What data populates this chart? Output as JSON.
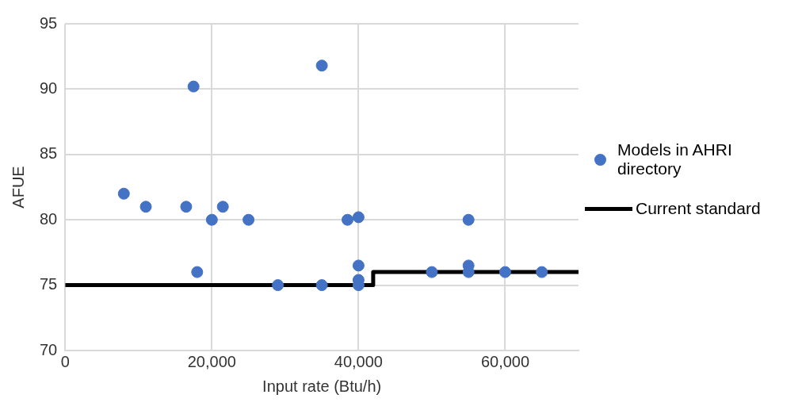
{
  "chart_data": {
    "type": "scatter",
    "xlabel": "Input rate (Btu/h)",
    "ylabel": "AFUE",
    "xlim": [
      0,
      70000
    ],
    "xticks": [
      0,
      {
        "value": 20000,
        "label": "20,000"
      },
      {
        "value": 40000,
        "label": "40,000"
      },
      {
        "value": 60000,
        "label": "60,000"
      }
    ],
    "ylim": [
      70,
      95
    ],
    "yticks": [
      70,
      75,
      80,
      85,
      90,
      95
    ],
    "grid": true,
    "legend": "right",
    "series": [
      {
        "name": "Models in AHRI directory",
        "marker": "circle",
        "color": "#4472c4",
        "x": [
          8000,
          11000,
          16500,
          17500,
          18000,
          20000,
          21500,
          25000,
          29000,
          35000,
          35000,
          38500,
          40000,
          40000,
          40000,
          40000,
          50000,
          55000,
          55000,
          55000,
          60000,
          65000
        ],
        "values": [
          82,
          81,
          81,
          90.2,
          76,
          80,
          81,
          80,
          75,
          91.8,
          75,
          80,
          80.2,
          76.5,
          75.4,
          75,
          76,
          80,
          76.5,
          76,
          76,
          76
        ]
      },
      {
        "name": "Current standard",
        "type": "step",
        "marker": "none",
        "color": "#000000",
        "x": [
          0,
          42000,
          70000
        ],
        "values": [
          75,
          76,
          76
        ]
      }
    ]
  }
}
